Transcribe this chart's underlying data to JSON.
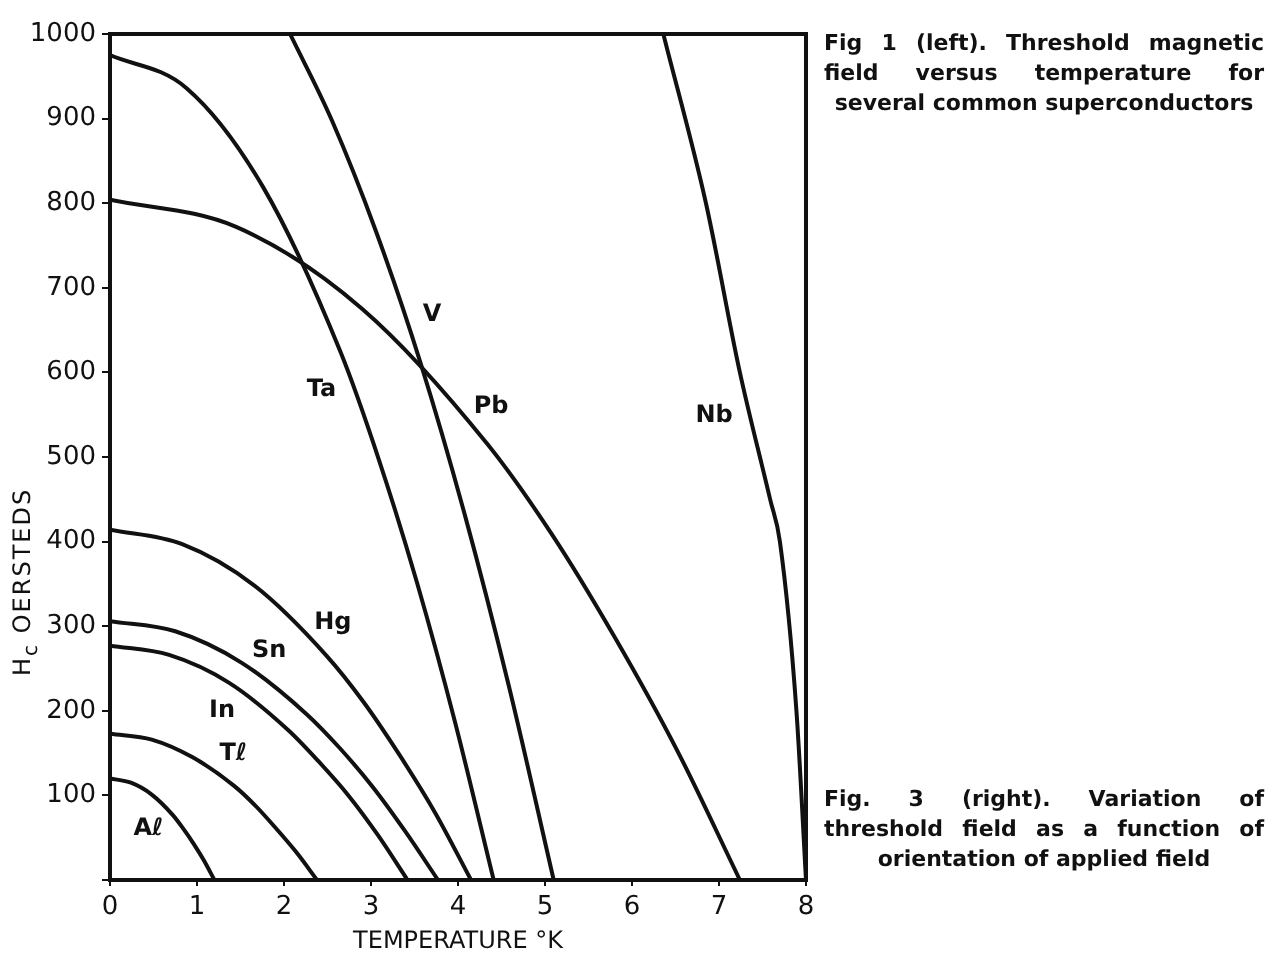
{
  "chart_data": {
    "type": "line",
    "xlabel": "TEMPERATURE °K",
    "ylabel": "H$_{c}$ OERSTEDS",
    "xlim": [
      0,
      8
    ],
    "xticks": [
      0,
      1,
      2,
      3,
      4,
      5,
      6,
      7,
      8
    ],
    "ylim": [
      0,
      1000
    ],
    "yticks": [
      {
        "value": 0,
        "label": null
      },
      100,
      200,
      300,
      400,
      500,
      600,
      700,
      800,
      900,
      1000
    ],
    "grid": false,
    "legend": false,
    "marker": "none",
    "line_style": "solid",
    "series": [
      {
        "name": "Aℓ",
        "color": "#111111",
        "x": [
          0,
          0.24,
          0.48,
          0.72,
          0.84,
          0.96,
          1.08,
          1.2
        ],
        "values": [
          120,
          115,
          101,
          77,
          61,
          43,
          23,
          0
        ]
      },
      {
        "name": "Tℓ",
        "color": "#111111",
        "x": [
          0,
          0.48,
          0.95,
          1.43,
          1.67,
          1.9,
          2.14,
          2.38
        ],
        "values": [
          173,
          166,
          145,
          111,
          88,
          62,
          33,
          0
        ]
      },
      {
        "name": "In",
        "color": "#111111",
        "x": [
          0,
          0.68,
          1.37,
          2.05,
          2.39,
          2.74,
          3.08,
          3.42
        ],
        "values": [
          277,
          266,
          233,
          177,
          141,
          100,
          53,
          0
        ]
      },
      {
        "name": "Sn",
        "color": "#111111",
        "x": [
          0,
          0.75,
          1.51,
          2.26,
          2.64,
          3.02,
          3.39,
          3.77
        ],
        "values": [
          306,
          294,
          257,
          196,
          156,
          110,
          58,
          0
        ]
      },
      {
        "name": "Hg",
        "color": "#111111",
        "x": [
          0,
          0.83,
          1.66,
          2.49,
          2.91,
          3.32,
          3.74,
          4.15
        ],
        "values": [
          414,
          397,
          348,
          265,
          211,
          149,
          79,
          0
        ]
      },
      {
        "name": "Ta",
        "color": "#111111",
        "x": [
          0,
          0.88,
          1.76,
          2.65,
          3.09,
          3.53,
          3.97,
          4.41
        ],
        "values": [
          975,
          936,
          819,
          624,
          497,
          351,
          185,
          0
        ]
      },
      {
        "name": "V",
        "color": "#111111",
        "x": [
          2.07,
          2.55,
          3.06,
          3.57,
          4.08,
          4.59,
          5.1
        ],
        "values": [
          1000,
          898,
          766,
          611,
          431,
          227,
          0
        ]
      },
      {
        "name": "Pb",
        "color": "#111111",
        "x": [
          0,
          1.45,
          2.9,
          4.34,
          5.07,
          5.79,
          6.52,
          7.24
        ],
        "values": [
          804,
          772,
          675,
          515,
          410,
          289,
          153,
          0
        ]
      },
      {
        "name": "Nb",
        "color": "#111111",
        "x": [
          6.36,
          6.85,
          7.24,
          7.59,
          7.7,
          7.89,
          8.0
        ],
        "values": [
          1000,
          800,
          600,
          449,
          400,
          200,
          0
        ]
      }
    ],
    "annotations": [
      "Fig 1 (left). Threshold magnetic field versus temperature for several common superconductors",
      "Fig. 3 (right). Variation of threshold field as a function of orientation of applied field"
    ]
  }
}
